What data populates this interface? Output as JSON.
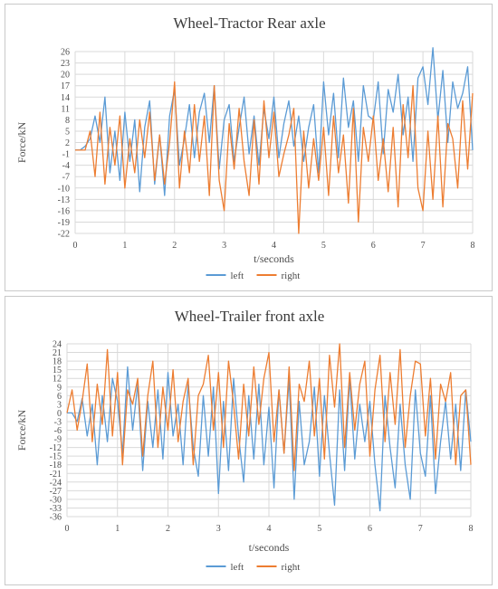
{
  "chart_data": [
    {
      "type": "line",
      "title": "Wheel-Tractor Rear axle",
      "xlabel": "t/seconds",
      "ylabel": "Force/kN",
      "xlim": [
        0,
        8
      ],
      "ylim": [
        -22,
        26
      ],
      "xticks": [
        "0",
        "1",
        "2",
        "3",
        "4",
        "5",
        "6",
        "7",
        "8"
      ],
      "yticks": [
        "26",
        "23",
        "20",
        "17",
        "14",
        "11",
        "8",
        "5",
        "2",
        "-1",
        "-4",
        "-7",
        "-10",
        "-13",
        "-16",
        "-19",
        "-22"
      ],
      "grid": true,
      "legend": "bottom",
      "series": [
        {
          "name": "left",
          "color": "#5b9bd5",
          "x": [
            0,
            0.1,
            0.2,
            0.3,
            0.4,
            0.5,
            0.6,
            0.7,
            0.8,
            0.9,
            1,
            1.1,
            1.2,
            1.3,
            1.4,
            1.5,
            1.6,
            1.7,
            1.8,
            1.9,
            2,
            2.1,
            2.2,
            2.3,
            2.4,
            2.5,
            2.6,
            2.7,
            2.8,
            2.9,
            3,
            3.1,
            3.2,
            3.3,
            3.4,
            3.5,
            3.6,
            3.7,
            3.8,
            3.9,
            4,
            4.1,
            4.2,
            4.3,
            4.4,
            4.5,
            4.6,
            4.7,
            4.8,
            4.9,
            5,
            5.1,
            5.2,
            5.3,
            5.4,
            5.5,
            5.6,
            5.7,
            5.8,
            5.9,
            6,
            6.1,
            6.2,
            6.3,
            6.4,
            6.5,
            6.6,
            6.7,
            6.8,
            6.9,
            7,
            7.1,
            7.2,
            7.3,
            7.4,
            7.5,
            7.6,
            7.7,
            7.8,
            7.9,
            8
          ],
          "y": [
            0,
            0,
            1,
            3,
            9,
            2,
            14,
            -6,
            5,
            -8,
            10,
            -3,
            8,
            -11,
            6,
            13,
            -9,
            4,
            -12,
            9,
            16,
            -4,
            3,
            12,
            -2,
            10,
            15,
            2,
            17,
            -5,
            8,
            12,
            -3,
            6,
            14,
            -1,
            9,
            -4,
            11,
            3,
            14,
            -2,
            7,
            13,
            1,
            9,
            -3,
            6,
            12,
            -6,
            18,
            4,
            15,
            -2,
            19,
            6,
            13,
            -3,
            17,
            9,
            8,
            18,
            -1,
            16,
            10,
            20,
            4,
            14,
            -3,
            19,
            22,
            12,
            27,
            8,
            21,
            2,
            18,
            11,
            15,
            22,
            0
          ]
        },
        {
          "name": "right",
          "color": "#ed7d31",
          "x": [
            0,
            0.1,
            0.2,
            0.3,
            0.4,
            0.5,
            0.6,
            0.7,
            0.8,
            0.9,
            1,
            1.1,
            1.2,
            1.3,
            1.4,
            1.5,
            1.6,
            1.7,
            1.8,
            1.9,
            2,
            2.1,
            2.2,
            2.3,
            2.4,
            2.5,
            2.6,
            2.7,
            2.8,
            2.9,
            3,
            3.1,
            3.2,
            3.3,
            3.4,
            3.5,
            3.6,
            3.7,
            3.8,
            3.9,
            4,
            4.1,
            4.2,
            4.3,
            4.4,
            4.5,
            4.6,
            4.7,
            4.8,
            4.9,
            5,
            5.1,
            5.2,
            5.3,
            5.4,
            5.5,
            5.6,
            5.7,
            5.8,
            5.9,
            6,
            6.1,
            6.2,
            6.3,
            6.4,
            6.5,
            6.6,
            6.7,
            6.8,
            6.9,
            7,
            7.1,
            7.2,
            7.3,
            7.4,
            7.5,
            7.6,
            7.7,
            7.8,
            7.9,
            8
          ],
          "y": [
            0,
            0,
            0,
            5,
            -7,
            10,
            -9,
            6,
            -4,
            9,
            -10,
            3,
            -6,
            8,
            -2,
            10,
            -8,
            4,
            -9,
            2,
            18,
            -10,
            5,
            -6,
            12,
            -3,
            9,
            -12,
            17,
            -8,
            -16,
            7,
            -5,
            11,
            -3,
            -12,
            8,
            -9,
            13,
            -2,
            10,
            -7,
            -1,
            4,
            11,
            -22,
            5,
            -10,
            3,
            -8,
            6,
            -12,
            9,
            -6,
            4,
            -14,
            11,
            -19,
            6,
            -3,
            9,
            -8,
            3,
            -11,
            6,
            -15,
            12,
            -2,
            17,
            -10,
            -16,
            5,
            -13,
            9,
            -15,
            7,
            3,
            -10,
            13,
            -5,
            15
          ]
        }
      ]
    },
    {
      "type": "line",
      "title": "Wheel-Trailer front axle",
      "xlabel": "t/seconds",
      "ylabel": "Force/kN",
      "xlim": [
        0,
        8
      ],
      "ylim": [
        -36,
        24
      ],
      "xticks": [
        "0",
        "1",
        "2",
        "3",
        "4",
        "5",
        "6",
        "7",
        "8"
      ],
      "yticks": [
        "24",
        "21",
        "18",
        "15",
        "12",
        "9",
        "6",
        "3",
        "0",
        "-3",
        "-6",
        "-9",
        "-12",
        "-15",
        "-18",
        "-21",
        "-24",
        "-27",
        "-30",
        "-33",
        "-36"
      ],
      "grid": true,
      "legend": "bottom",
      "series": [
        {
          "name": "left",
          "color": "#5b9bd5",
          "x": [
            0,
            0.1,
            0.2,
            0.3,
            0.4,
            0.5,
            0.6,
            0.7,
            0.8,
            0.9,
            1,
            1.1,
            1.2,
            1.3,
            1.4,
            1.5,
            1.6,
            1.7,
            1.8,
            1.9,
            2,
            2.1,
            2.2,
            2.3,
            2.4,
            2.5,
            2.6,
            2.7,
            2.8,
            2.9,
            3,
            3.1,
            3.2,
            3.3,
            3.4,
            3.5,
            3.6,
            3.7,
            3.8,
            3.9,
            4,
            4.1,
            4.2,
            4.3,
            4.4,
            4.5,
            4.6,
            4.7,
            4.8,
            4.9,
            5,
            5.1,
            5.2,
            5.3,
            5.4,
            5.5,
            5.6,
            5.7,
            5.8,
            5.9,
            6,
            6.1,
            6.2,
            6.3,
            6.4,
            6.5,
            6.6,
            6.7,
            6.8,
            6.9,
            7,
            7.1,
            7.2,
            7.3,
            7.4,
            7.5,
            7.6,
            7.7,
            7.8,
            7.9,
            8
          ],
          "y": [
            0,
            0,
            -3,
            5,
            -8,
            3,
            -18,
            6,
            -10,
            12,
            4,
            -14,
            16,
            -6,
            10,
            -20,
            4,
            -12,
            8,
            -16,
            14,
            -8,
            3,
            -18,
            10,
            -12,
            -22,
            6,
            -15,
            9,
            -28,
            4,
            -20,
            12,
            -8,
            -24,
            6,
            -16,
            10,
            -18,
            2,
            -26,
            8,
            -14,
            12,
            -30,
            4,
            -18,
            -10,
            9,
            -22,
            6,
            -14,
            -32,
            8,
            -20,
            12,
            -16,
            3,
            -10,
            4,
            -18,
            -34,
            6,
            -12,
            -26,
            3,
            -18,
            -30,
            8,
            -14,
            -22,
            6,
            -28,
            -10,
            4,
            -16,
            3,
            -20,
            8,
            -10
          ]
        },
        {
          "name": "right",
          "color": "#ed7d31",
          "x": [
            0,
            0.1,
            0.2,
            0.3,
            0.4,
            0.5,
            0.6,
            0.7,
            0.8,
            0.9,
            1,
            1.1,
            1.2,
            1.3,
            1.4,
            1.5,
            1.6,
            1.7,
            1.8,
            1.9,
            2,
            2.1,
            2.2,
            2.3,
            2.4,
            2.5,
            2.6,
            2.7,
            2.8,
            2.9,
            3,
            3.1,
            3.2,
            3.3,
            3.4,
            3.5,
            3.6,
            3.7,
            3.8,
            3.9,
            4,
            4.1,
            4.2,
            4.3,
            4.4,
            4.5,
            4.6,
            4.7,
            4.8,
            4.9,
            5,
            5.1,
            5.2,
            5.3,
            5.4,
            5.5,
            5.6,
            5.7,
            5.8,
            5.9,
            6,
            6.1,
            6.2,
            6.3,
            6.4,
            6.5,
            6.6,
            6.7,
            6.8,
            6.9,
            7,
            7.1,
            7.2,
            7.3,
            7.4,
            7.5,
            7.6,
            7.7,
            7.8,
            7.9,
            8
          ],
          "y": [
            0,
            8,
            -6,
            4,
            17,
            -10,
            10,
            -4,
            22,
            -8,
            14,
            -18,
            8,
            3,
            12,
            -15,
            6,
            18,
            -12,
            9,
            -6,
            15,
            -10,
            4,
            12,
            -18,
            6,
            10,
            20,
            -6,
            14,
            -12,
            18,
            3,
            -16,
            10,
            -8,
            16,
            -4,
            12,
            21,
            -10,
            8,
            -14,
            16,
            -20,
            10,
            4,
            18,
            -8,
            12,
            -16,
            20,
            2,
            24,
            -12,
            14,
            -6,
            10,
            18,
            -15,
            8,
            20,
            -10,
            14,
            -4,
            22,
            -12,
            6,
            18,
            17,
            -8,
            12,
            -16,
            10,
            4,
            14,
            -18,
            6,
            8,
            -18
          ]
        }
      ]
    }
  ]
}
